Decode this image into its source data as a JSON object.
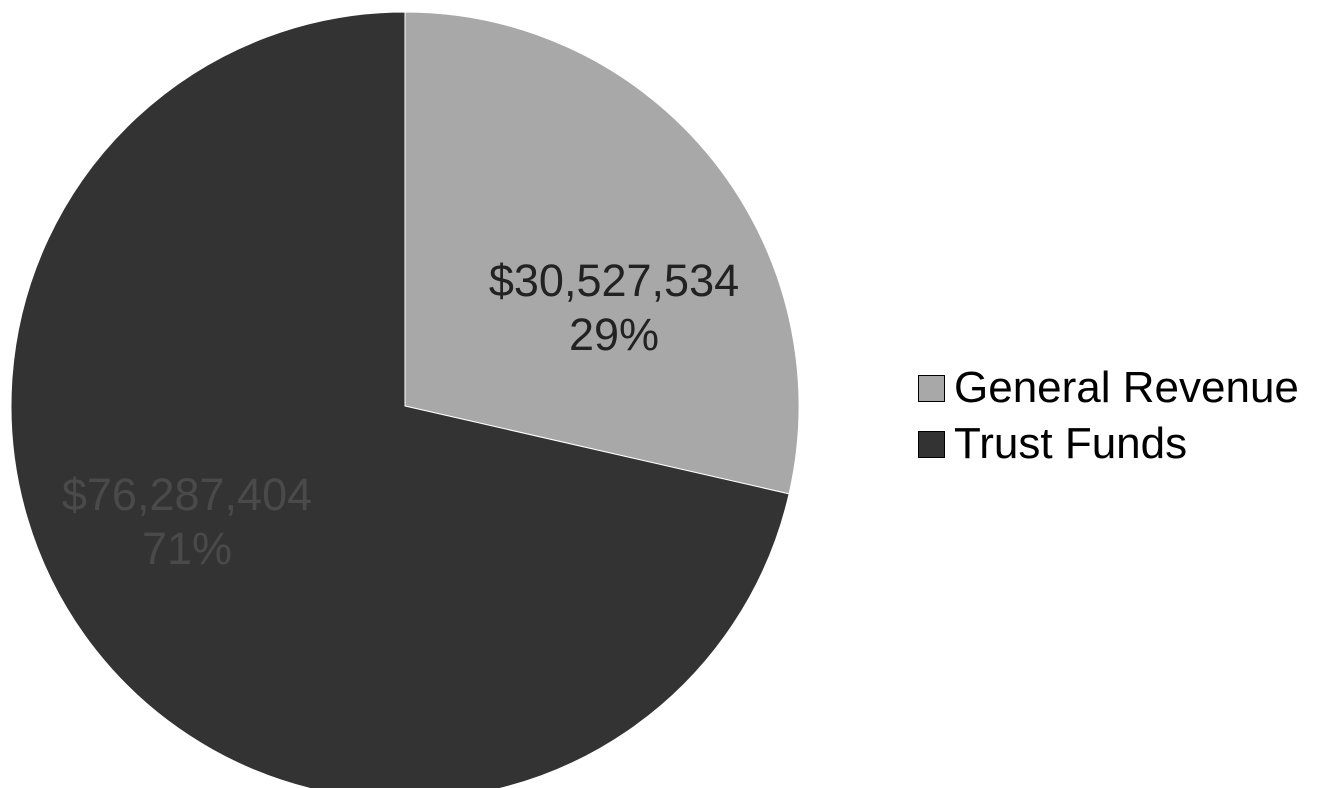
{
  "chart_data": {
    "type": "pie",
    "title": "",
    "slices": [
      {
        "name": "General Revenue",
        "value": 30527534,
        "value_label": "$30,527,534",
        "percent_label": "29%",
        "color": "#a8a8a8"
      },
      {
        "name": "Trust Funds",
        "value": 76287404,
        "value_label": "$76,287,404",
        "percent_label": "71%",
        "color": "#333333"
      }
    ],
    "legend_position": "right",
    "start_angle_deg": 0,
    "direction": "clockwise"
  }
}
